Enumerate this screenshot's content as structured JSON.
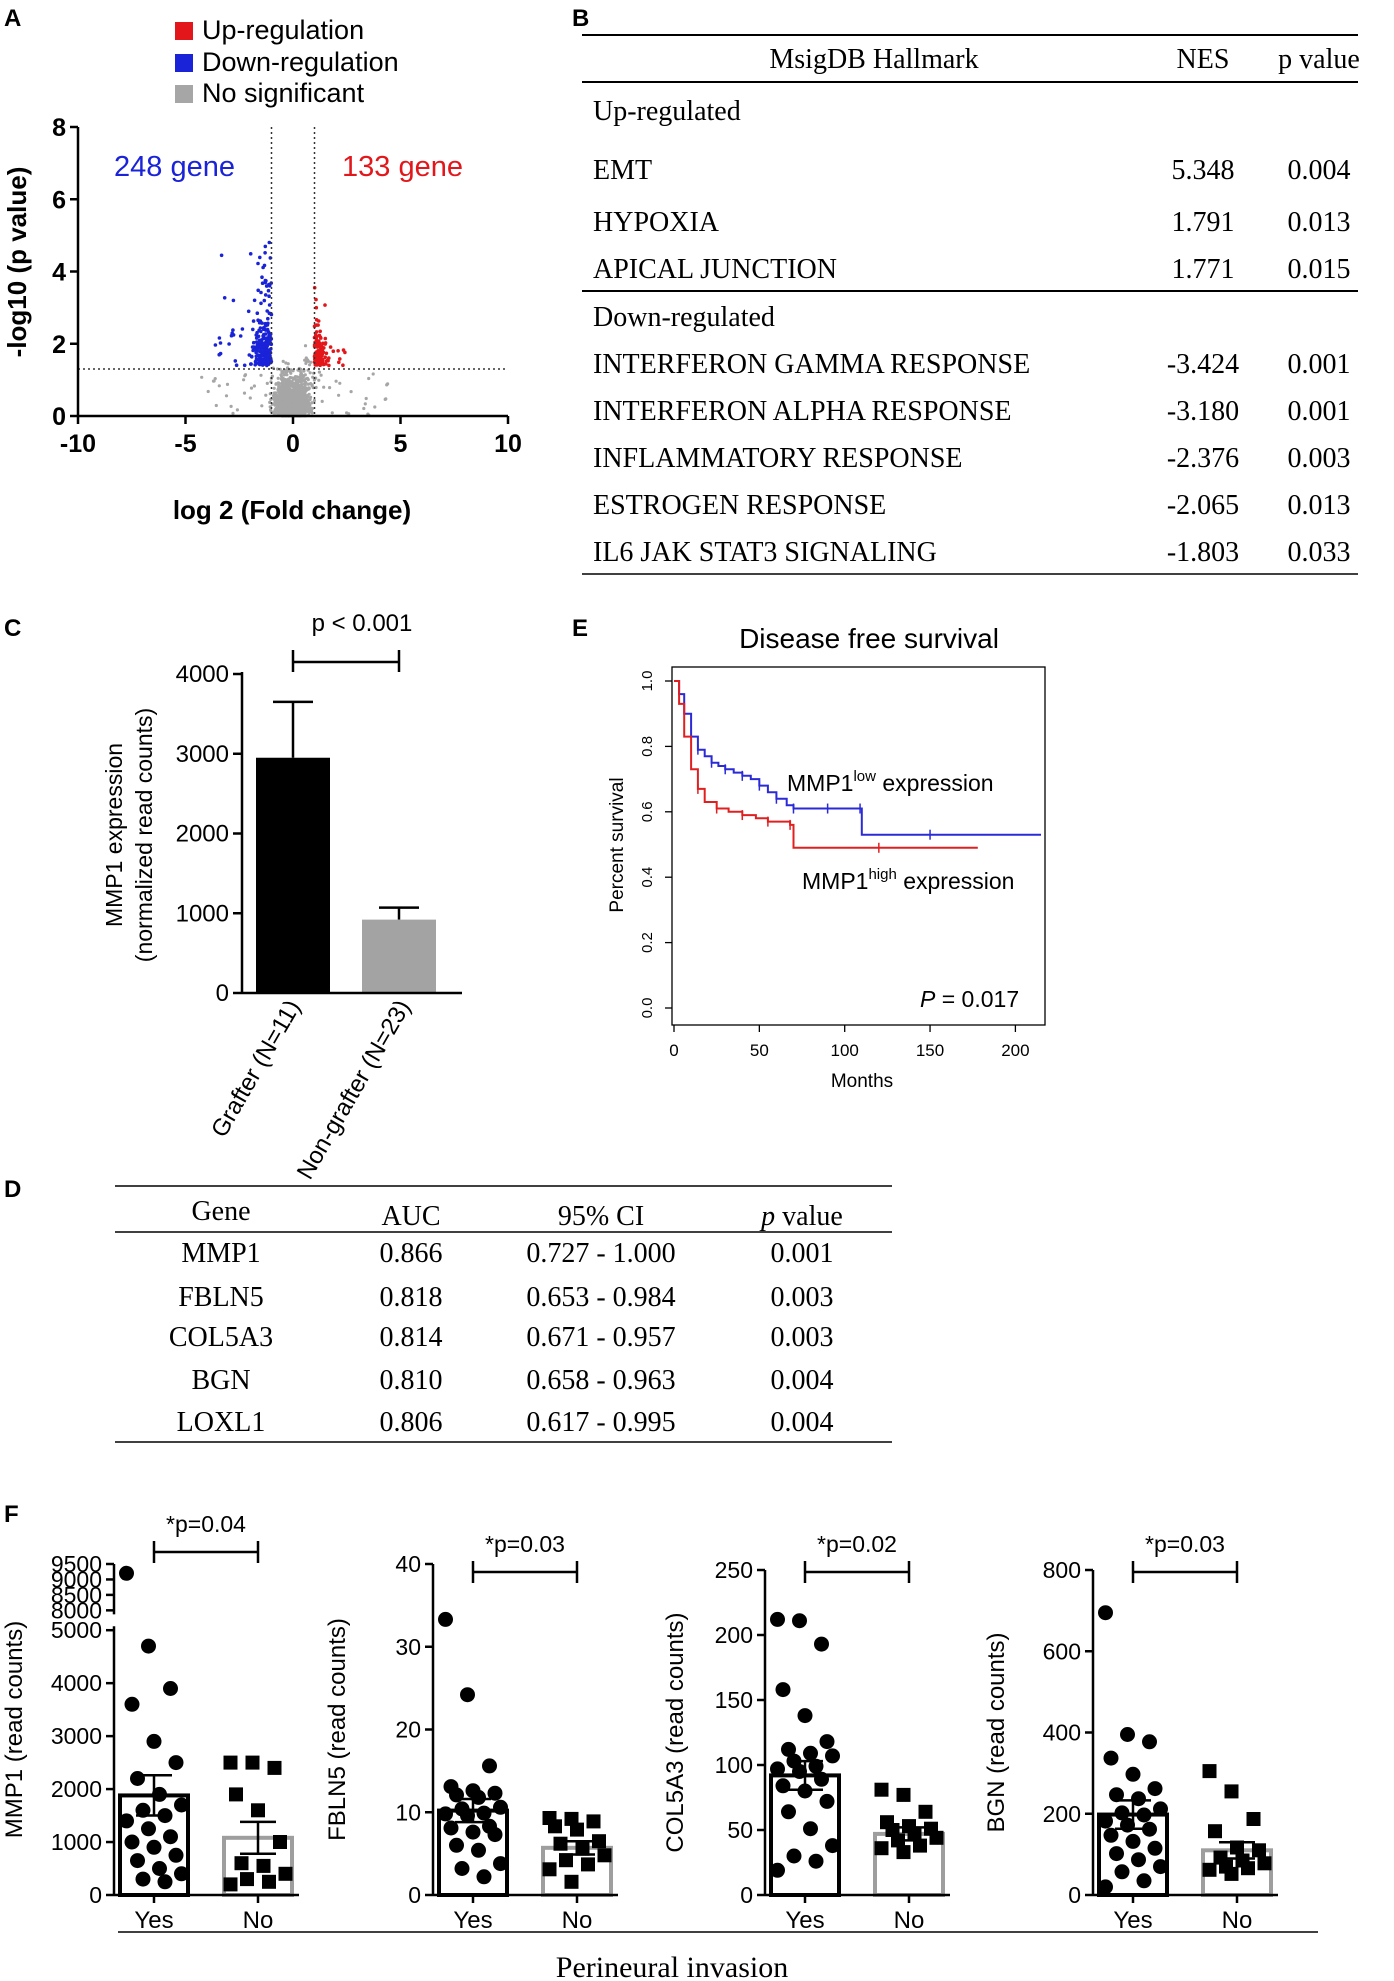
{
  "panel_letters": {
    "a": "A",
    "b": "B",
    "c": "C",
    "d": "D",
    "e": "E",
    "f": "F"
  },
  "colors": {
    "up": "#e3171b",
    "down": "#1a23d8",
    "ns": "#a6a6a6",
    "survival_low": "#2a2ad6",
    "survival_high": "#e02020",
    "nongrafter_bar": "#a3a3a3"
  },
  "volcano": {
    "legend": [
      "Up-regulation",
      "Down-regulation",
      "No significant"
    ],
    "down_count_label": "248 gene",
    "up_count_label": "133 gene",
    "xlabel": "log 2 (Fold change)",
    "ylabel": "-log10 (p value)",
    "x_ticks": [
      "-10",
      "-5",
      "0",
      "5",
      "10"
    ],
    "y_ticks": [
      "0",
      "2",
      "4",
      "6",
      "8"
    ]
  },
  "hallmark_table": {
    "headers": [
      "MsigDB Hallmark",
      "NES",
      "p value"
    ],
    "up_label": "Up-regulated",
    "up_rows": [
      {
        "name": "EMT",
        "nes": "5.348",
        "p": "0.004"
      },
      {
        "name": "HYPOXIA",
        "nes": "1.791",
        "p": "0.013"
      },
      {
        "name": "APICAL JUNCTION",
        "nes": "1.771",
        "p": "0.015"
      }
    ],
    "down_label": "Down-regulated",
    "down_rows": [
      {
        "name": "INTERFERON GAMMA RESPONSE",
        "nes": "-3.424",
        "p": "0.001"
      },
      {
        "name": "INTERFERON ALPHA RESPONSE",
        "nes": "-3.180",
        "p": "0.001"
      },
      {
        "name": "INFLAMMATORY RESPONSE",
        "nes": "-2.376",
        "p": "0.003"
      },
      {
        "name": "ESTROGEN RESPONSE",
        "nes": "-2.065",
        "p": "0.013"
      },
      {
        "name": "IL6 JAK STAT3 SIGNALING",
        "nes": "-1.803",
        "p": "0.033"
      }
    ]
  },
  "mmp1_bar": {
    "sig_label": "p < 0.001",
    "ylabel_line1": "MMP1 expression",
    "ylabel_line2": "(normalized read counts)",
    "y_ticks": [
      "0",
      "1000",
      "2000",
      "3000",
      "4000"
    ]
  },
  "survival": {
    "title": "Disease free survival",
    "xlabel": "Months",
    "ylabel": "Percent survival",
    "x_ticks": [
      "0",
      "50",
      "100",
      "150",
      "200"
    ],
    "y_ticks": [
      "0.0",
      "0.2",
      "0.4",
      "0.6",
      "0.8",
      "1.0"
    ],
    "low_label": "MMP1",
    "low_sup": "low",
    "low_suffix": " expression",
    "high_label": "MMP1",
    "high_sup": "high",
    "high_suffix": " expression",
    "p_italic": "P",
    "p_rest": " = 0.017"
  },
  "auc_table": {
    "headers": [
      "Gene",
      "AUC",
      "95% CI",
      "p",
      " value"
    ],
    "rows": [
      {
        "gene": "MMP1",
        "auc": "0.866",
        "ci": "0.727 - 1.000",
        "p": "0.001"
      },
      {
        "gene": "FBLN5",
        "auc": "0.818",
        "ci": "0.653 - 0.984",
        "p": "0.003"
      },
      {
        "gene": "COL5A3",
        "auc": "0.814",
        "ci": "0.671 - 0.957",
        "p": "0.003"
      },
      {
        "gene": "BGN",
        "auc": "0.810",
        "ci": "0.658 - 0.963",
        "p": "0.004"
      },
      {
        "gene": "LOXL1",
        "auc": "0.806",
        "ci": "0.617 - 0.995",
        "p": "0.004"
      }
    ]
  },
  "perineural": {
    "xlabel": "Perineural invasion",
    "categories": [
      "Yes",
      "No"
    ]
  },
  "chart_data": [
    {
      "id": "volcano",
      "type": "scatter",
      "title": "",
      "xlabel": "log 2 (Fold change)",
      "ylabel": "-log10 (p value)",
      "xlim": [
        -10,
        10
      ],
      "ylim": [
        0,
        8
      ],
      "thresholds": {
        "log2fc": [
          -1,
          1
        ],
        "neg_log10_p": 1.3
      },
      "series": [
        {
          "name": "Up-regulation",
          "count": 133
        },
        {
          "name": "Down-regulation",
          "count": 248
        },
        {
          "name": "No significant"
        }
      ]
    },
    {
      "id": "mmp1_grafter",
      "type": "bar",
      "categories": [
        "Grafter (N=11)",
        "Non-grafter (N=23)"
      ],
      "values": [
        2950,
        920
      ],
      "errors": [
        700,
        150
      ],
      "ylabel": "MMP1 expression (normalized read counts)",
      "ylim": [
        0,
        4000
      ],
      "annotation": "p < 0.001"
    },
    {
      "id": "dfs",
      "type": "line",
      "title": "Disease free survival",
      "xlabel": "Months",
      "ylabel": "Percent survival",
      "xlim": [
        0,
        215
      ],
      "ylim": [
        0,
        1
      ],
      "annotation": "P = 0.017",
      "series": [
        {
          "name": "MMP1 low expression",
          "x": [
            0,
            3,
            6,
            10,
            14,
            18,
            22,
            26,
            30,
            35,
            40,
            45,
            50,
            55,
            60,
            66,
            70,
            80,
            90,
            100,
            109,
            110,
            150,
            215
          ],
          "y": [
            1.0,
            0.96,
            0.9,
            0.83,
            0.79,
            0.77,
            0.75,
            0.74,
            0.73,
            0.72,
            0.71,
            0.7,
            0.68,
            0.66,
            0.64,
            0.62,
            0.61,
            0.61,
            0.61,
            0.61,
            0.61,
            0.53,
            0.53,
            0.53
          ]
        },
        {
          "name": "MMP1 high expression",
          "x": [
            0,
            3,
            6,
            10,
            14,
            18,
            25,
            32,
            40,
            48,
            55,
            62,
            68,
            70,
            120,
            178
          ],
          "y": [
            1.0,
            0.93,
            0.83,
            0.73,
            0.67,
            0.63,
            0.61,
            0.6,
            0.59,
            0.58,
            0.57,
            0.57,
            0.56,
            0.49,
            0.49,
            0.49
          ]
        }
      ]
    },
    {
      "id": "mmp1_pni",
      "type": "scatter",
      "ylabel": "MMP1 (read counts)",
      "categories": [
        "Yes",
        "No"
      ],
      "y_break": [
        5000,
        8000
      ],
      "ylim": [
        0,
        9500
      ],
      "y_ticks": [
        0,
        1000,
        2000,
        3000,
        4000,
        5000,
        8000,
        8500,
        9000,
        9500
      ],
      "means": [
        1880,
        1080
      ],
      "sems": [
        380,
        300
      ],
      "annotation": "*p=0.04",
      "series": [
        {
          "name": "Yes",
          "values": [
            9200,
            4700,
            3900,
            3600,
            2900,
            2500,
            2200,
            1900,
            1700,
            1600,
            1500,
            1400,
            1250,
            1100,
            1000,
            900,
            750,
            650,
            500,
            400,
            300,
            250
          ]
        },
        {
          "name": "No",
          "values": [
            2500,
            2500,
            2400,
            1900,
            1600,
            1000,
            600,
            550,
            400,
            300,
            250,
            200
          ]
        }
      ]
    },
    {
      "id": "fbln5_pni",
      "type": "scatter",
      "ylabel": "FBLN5 (read counts)",
      "categories": [
        "Yes",
        "No"
      ],
      "ylim": [
        0,
        40
      ],
      "y_ticks": [
        0,
        10,
        20,
        30,
        40
      ],
      "means": [
        10.2,
        5.7
      ],
      "sems": [
        1.4,
        0.8
      ],
      "annotation": "*p=0.03",
      "series": [
        {
          "name": "Yes",
          "values": [
            33.3,
            24.2,
            15.6,
            13.1,
            12.6,
            12.3,
            12.1,
            11.8,
            10.6,
            10.4,
            9.9,
            9.8,
            9.6,
            8.3,
            8.1,
            7.6,
            7.3,
            6.0,
            5.4,
            3.8,
            3.2,
            2.2
          ]
        },
        {
          "name": "No",
          "values": [
            9.3,
            9.2,
            8.9,
            8.3,
            7.9,
            6.5,
            6.2,
            5.6,
            4.8,
            4.2,
            3.7,
            3.1,
            1.6
          ]
        }
      ]
    },
    {
      "id": "col5a3_pni",
      "type": "scatter",
      "ylabel": "COL5A3 (read counts)",
      "categories": [
        "Yes",
        "No"
      ],
      "ylim": [
        0,
        250
      ],
      "y_ticks": [
        0,
        50,
        100,
        150,
        200,
        250
      ],
      "means": [
        92,
        47
      ],
      "sems": [
        11,
        5
      ],
      "annotation": "*p=0.02",
      "series": [
        {
          "name": "Yes",
          "values": [
            212,
            211,
            193,
            158,
            138,
            118,
            112,
            109,
            107,
            103,
            99,
            97,
            95,
            89,
            84,
            80,
            72,
            64,
            51,
            38,
            30,
            26,
            19
          ]
        },
        {
          "name": "No",
          "values": [
            81,
            77,
            64,
            56,
            53,
            51,
            50,
            47,
            44,
            42,
            38,
            36,
            33
          ]
        }
      ]
    },
    {
      "id": "bgn_pni",
      "type": "scatter",
      "ylabel": "BGN (read counts)",
      "categories": [
        "Yes",
        "No"
      ],
      "ylim": [
        0,
        800
      ],
      "y_ticks": [
        0,
        200,
        400,
        600,
        800
      ],
      "means": [
        198,
        110
      ],
      "sems": [
        35,
        20
      ],
      "annotation": "*p=0.03",
      "series": [
        {
          "name": "Yes",
          "values": [
            695,
            395,
            377,
            337,
            297,
            262,
            247,
            237,
            212,
            202,
            197,
            182,
            172,
            162,
            147,
            132,
            115,
            102,
            87,
            70,
            57,
            35,
            20
          ]
        },
        {
          "name": "No",
          "values": [
            305,
            255,
            187,
            157,
            117,
            110,
            92,
            85,
            78,
            70,
            66,
            62,
            52
          ]
        }
      ]
    }
  ]
}
